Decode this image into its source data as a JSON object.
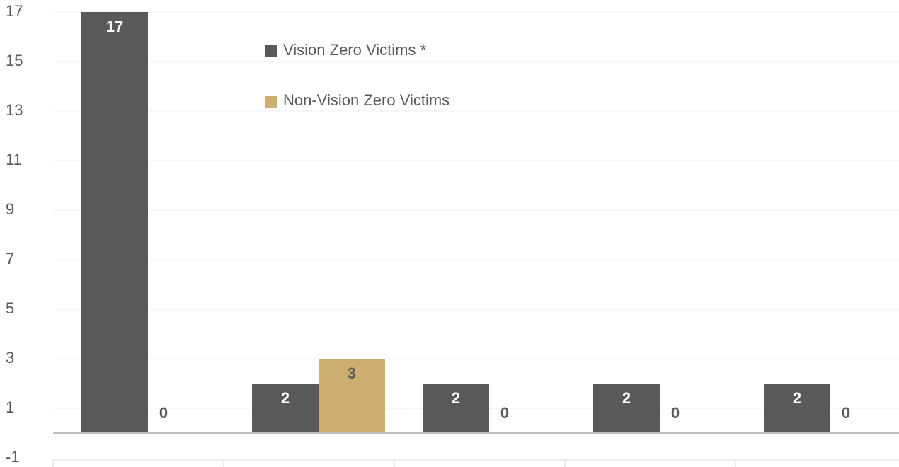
{
  "chart_data": {
    "type": "bar",
    "categories": [
      null,
      null,
      null,
      null,
      null
    ],
    "series": [
      {
        "name": "Vision Zero Victims *",
        "color": "#595959",
        "values": [
          17,
          2,
          2,
          2,
          2
        ]
      },
      {
        "name": "Non-Vision Zero Victims",
        "color": "#cdae72",
        "values": [
          0,
          3,
          0,
          0,
          0
        ]
      }
    ],
    "ylim": [
      -1,
      17
    ],
    "yticks": [
      -1,
      1,
      3,
      5,
      7,
      9,
      11,
      13,
      15,
      17
    ],
    "grid": true,
    "legend": "top"
  }
}
